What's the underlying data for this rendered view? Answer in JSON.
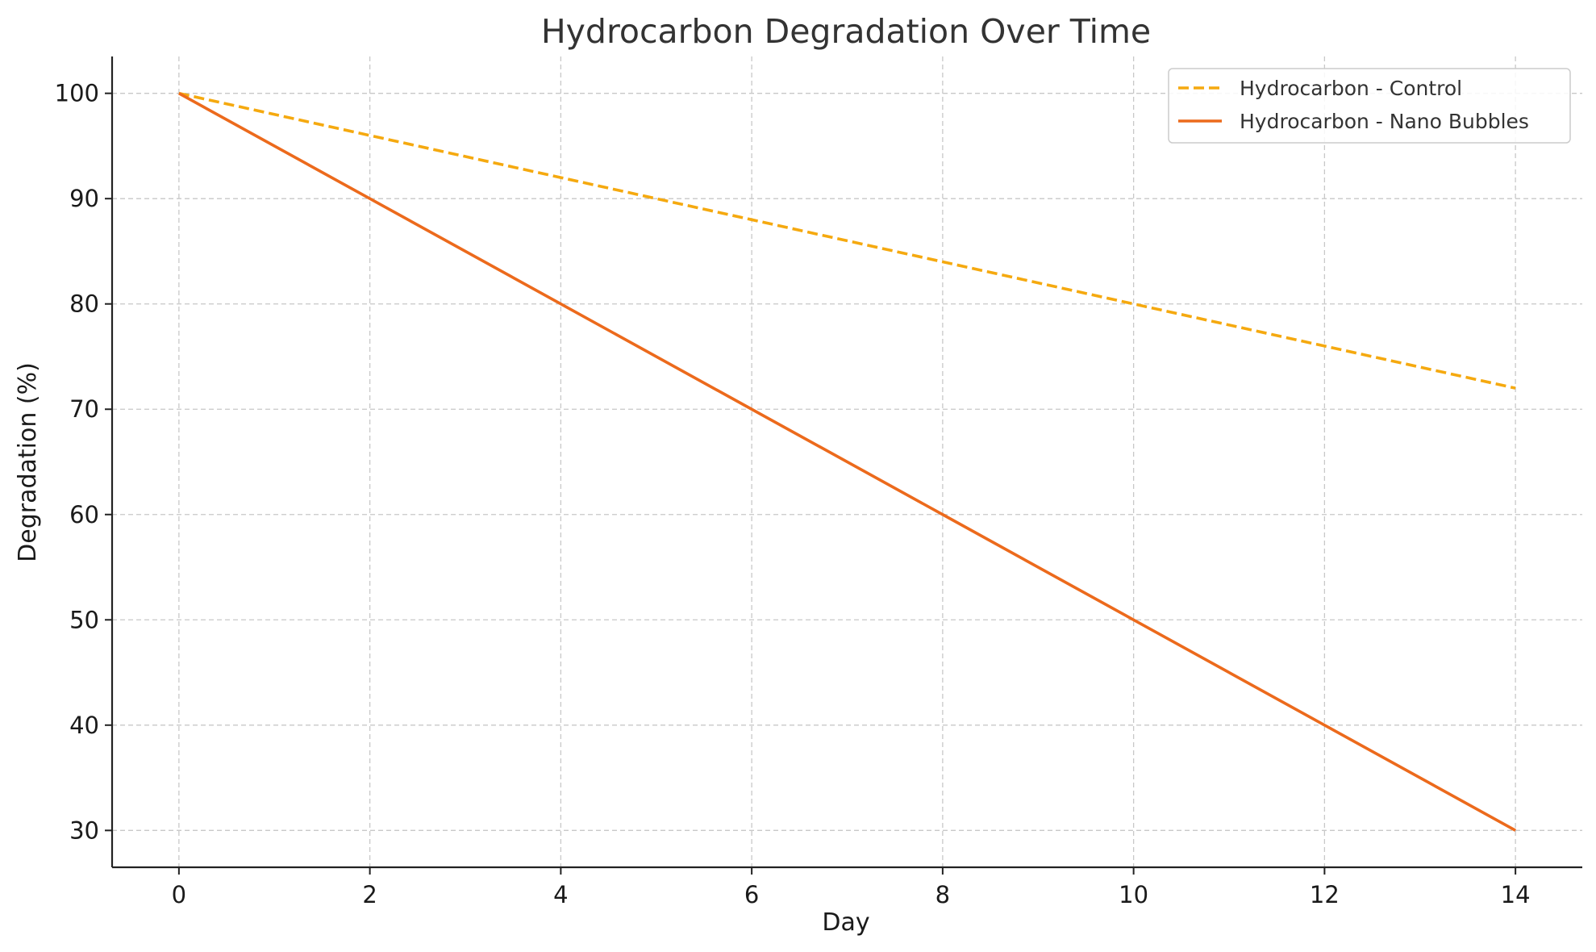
{
  "chart_data": {
    "type": "line",
    "title": "Hydrocarbon Degradation Over Time",
    "xlabel": "Day",
    "ylabel": "Degradation (%)",
    "x": [
      0,
      2,
      4,
      6,
      8,
      10,
      12,
      14
    ],
    "xlim": [
      -0.7,
      14.7
    ],
    "ylim": [
      26.5,
      103.5
    ],
    "xticks": [
      0,
      2,
      4,
      6,
      8,
      10,
      12,
      14
    ],
    "yticks": [
      30,
      40,
      50,
      60,
      70,
      80,
      90,
      100
    ],
    "grid": true,
    "legend_position": "top-right",
    "series": [
      {
        "name": "Hydrocarbon - Control",
        "values": [
          100,
          96,
          92,
          88,
          84,
          80,
          76,
          72
        ],
        "color": "#f5a90f",
        "style": "dashed"
      },
      {
        "name": "Hydrocarbon - Nano Bubbles",
        "values": [
          100,
          90,
          80,
          70,
          60,
          50,
          40,
          30
        ],
        "color": "#ec6a1c",
        "style": "solid"
      }
    ]
  }
}
